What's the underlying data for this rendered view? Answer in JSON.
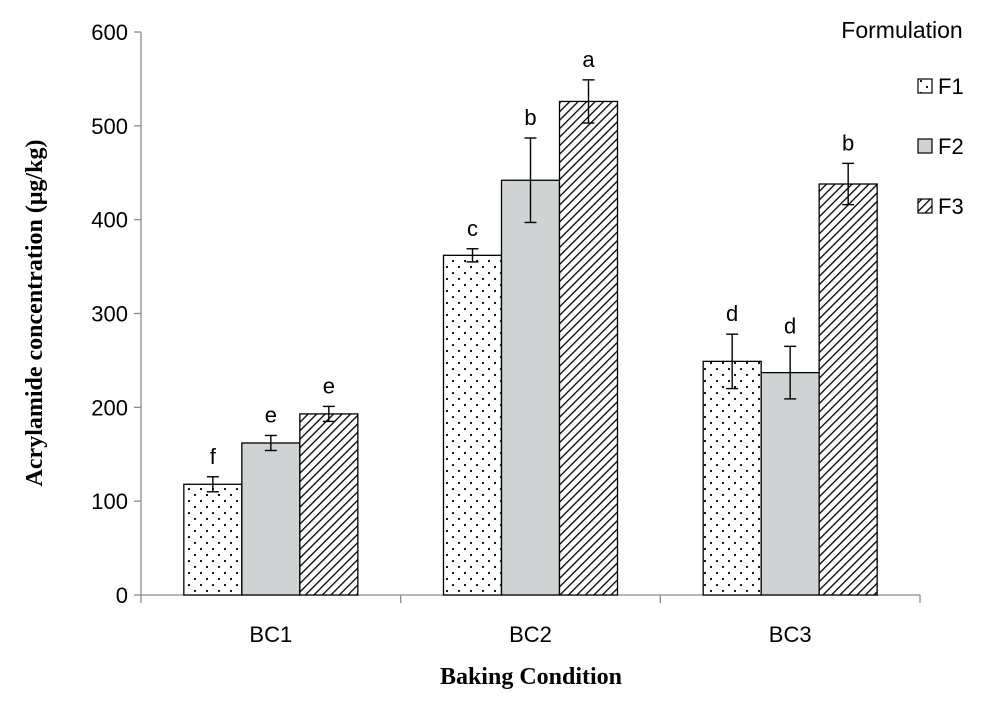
{
  "chart_data": {
    "type": "bar",
    "xlabel": "Baking Condition",
    "ylabel": "Acrylamide concentration  (μg/kg)",
    "ylim": [
      0,
      600
    ],
    "yticks": [
      0,
      100,
      200,
      300,
      400,
      500,
      600
    ],
    "grid": false,
    "legend_title": "Formulation",
    "legend_position": "top-right",
    "categories": [
      "BC1",
      "BC2",
      "BC3"
    ],
    "series": [
      {
        "name": "F1",
        "pattern": "dots",
        "fill": "#ffffff",
        "values": [
          118,
          362,
          249
        ],
        "errors": [
          8,
          7,
          29
        ],
        "letters": [
          "f",
          "c",
          "d"
        ]
      },
      {
        "name": "F2",
        "pattern": "solid",
        "fill": "#d0d3d3",
        "values": [
          162,
          442,
          237
        ],
        "errors": [
          8,
          45,
          28
        ],
        "letters": [
          "e",
          "b",
          "d"
        ]
      },
      {
        "name": "F3",
        "pattern": "diagonal",
        "fill": "#ffffff",
        "values": [
          193,
          526,
          438
        ],
        "errors": [
          8,
          23,
          22
        ],
        "letters": [
          "e",
          "a",
          "b"
        ]
      }
    ]
  }
}
